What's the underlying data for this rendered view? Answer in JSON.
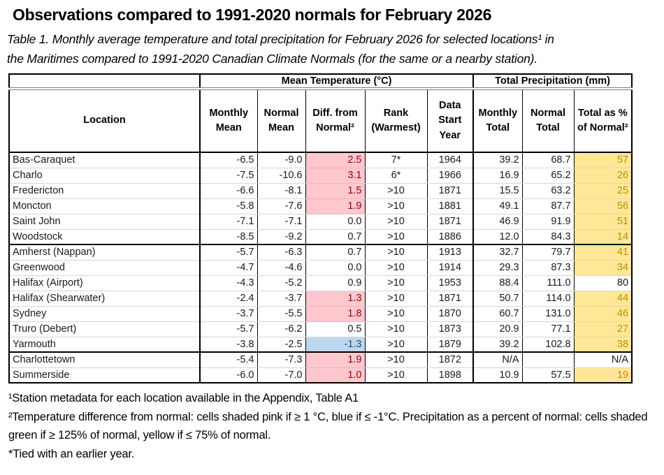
{
  "page": {
    "title": "Observations compared to 1991-2020 normals for February 2026",
    "caption_lines": [
      "Table 1. Monthly average temperature and total precipitation for February 2026 for selected locations¹ in",
      "the Maritimes compared to 1991-2020 Canadian Climate Normals (for the same or a nearby station)."
    ]
  },
  "table": {
    "group_headers": {
      "temperature": "Mean Temperature (°C)",
      "precipitation": "Total Precipitation (mm)"
    },
    "columns": [
      "Location",
      "Monthly Mean",
      "Normal Mean",
      "Diff. from Normal²",
      "Rank (Warmest)",
      "Data Start Year",
      "Monthly Total",
      "Normal Total",
      "Total as % of Normal²"
    ],
    "rows": [
      {
        "location": "Bas-Caraquet",
        "monthly_mean": "-6.5",
        "normal_mean": "-9.0",
        "diff": "2.5",
        "diff_shade": "pink",
        "rank": "7*",
        "start_year": "1964",
        "monthly_total": "39.2",
        "normal_total": "68.7",
        "pct": "57",
        "pct_shade": "yellow",
        "group_end": false
      },
      {
        "location": "Charlo",
        "monthly_mean": "-7.5",
        "normal_mean": "-10.6",
        "diff": "3.1",
        "diff_shade": "pink",
        "rank": "6*",
        "start_year": "1966",
        "monthly_total": "16.9",
        "normal_total": "65.2",
        "pct": "26",
        "pct_shade": "yellow",
        "group_end": false
      },
      {
        "location": "Fredericton",
        "monthly_mean": "-6.6",
        "normal_mean": "-8.1",
        "diff": "1.5",
        "diff_shade": "pink",
        "rank": ">10",
        "start_year": "1871",
        "monthly_total": "15.5",
        "normal_total": "63.2",
        "pct": "25",
        "pct_shade": "yellow",
        "group_end": false
      },
      {
        "location": "Moncton",
        "monthly_mean": "-5.8",
        "normal_mean": "-7.6",
        "diff": "1.9",
        "diff_shade": "pink",
        "rank": ">10",
        "start_year": "1881",
        "monthly_total": "49.1",
        "normal_total": "87.7",
        "pct": "56",
        "pct_shade": "yellow",
        "group_end": false
      },
      {
        "location": "Saint John",
        "monthly_mean": "-7.1",
        "normal_mean": "-7.1",
        "diff": "0.0",
        "diff_shade": "none",
        "rank": ">10",
        "start_year": "1871",
        "monthly_total": "46.9",
        "normal_total": "91.9",
        "pct": "51",
        "pct_shade": "yellow",
        "group_end": false
      },
      {
        "location": "Woodstock",
        "monthly_mean": "-8.5",
        "normal_mean": "-9.2",
        "diff": "0.7",
        "diff_shade": "none",
        "rank": ">10",
        "start_year": "1886",
        "monthly_total": "12.0",
        "normal_total": "84.3",
        "pct": "14",
        "pct_shade": "yellow",
        "group_end": true
      },
      {
        "location": "Amherst (Nappan)",
        "monthly_mean": "-5.7",
        "normal_mean": "-6.3",
        "diff": "0.7",
        "diff_shade": "none",
        "rank": ">10",
        "start_year": "1913",
        "monthly_total": "32.7",
        "normal_total": "79.7",
        "pct": "41",
        "pct_shade": "yellow",
        "group_end": false
      },
      {
        "location": "Greenwood",
        "monthly_mean": "-4.7",
        "normal_mean": "-4.6",
        "diff": "0.0",
        "diff_shade": "none",
        "rank": ">10",
        "start_year": "1914",
        "monthly_total": "29.3",
        "normal_total": "87.3",
        "pct": "34",
        "pct_shade": "yellow",
        "group_end": false
      },
      {
        "location": "Halifax (Airport)",
        "monthly_mean": "-4.3",
        "normal_mean": "-5.2",
        "diff": "0.9",
        "diff_shade": "none",
        "rank": ">10",
        "start_year": "1953",
        "monthly_total": "88.4",
        "normal_total": "111.0",
        "pct": "80",
        "pct_shade": "none",
        "group_end": false
      },
      {
        "location": "Halifax (Shearwater)",
        "monthly_mean": "-2.4",
        "normal_mean": "-3.7",
        "diff": "1.3",
        "diff_shade": "pink",
        "rank": ">10",
        "start_year": "1871",
        "monthly_total": "50.7",
        "normal_total": "114.0",
        "pct": "44",
        "pct_shade": "yellow",
        "group_end": false
      },
      {
        "location": "Sydney",
        "monthly_mean": "-3.7",
        "normal_mean": "-5.5",
        "diff": "1.8",
        "diff_shade": "pink",
        "rank": ">10",
        "start_year": "1870",
        "monthly_total": "60.7",
        "normal_total": "131.0",
        "pct": "46",
        "pct_shade": "yellow",
        "group_end": false
      },
      {
        "location": "Truro (Debert)",
        "monthly_mean": "-5.7",
        "normal_mean": "-6.2",
        "diff": "0.5",
        "diff_shade": "none",
        "rank": ">10",
        "start_year": "1873",
        "monthly_total": "20.9",
        "normal_total": "77.1",
        "pct": "27",
        "pct_shade": "yellow",
        "group_end": false
      },
      {
        "location": "Yarmouth",
        "monthly_mean": "-3.8",
        "normal_mean": "-2.5",
        "diff": "-1.3",
        "diff_shade": "blue",
        "rank": ">10",
        "start_year": "1879",
        "monthly_total": "39.2",
        "normal_total": "102.8",
        "pct": "38",
        "pct_shade": "yellow",
        "group_end": true
      },
      {
        "location": "Charlottetown",
        "monthly_mean": "-5.4",
        "normal_mean": "-7.3",
        "diff": "1.9",
        "diff_shade": "pink",
        "rank": ">10",
        "start_year": "1872",
        "monthly_total": "N/A",
        "normal_total": "",
        "pct": "N/A",
        "pct_shade": "none",
        "group_end": false
      },
      {
        "location": "Summerside",
        "monthly_mean": "-6.0",
        "normal_mean": "-7.0",
        "diff": "1.0",
        "diff_shade": "pink",
        "rank": ">10",
        "start_year": "1898",
        "monthly_total": "10.9",
        "normal_total": "57.5",
        "pct": "19",
        "pct_shade": "yellow",
        "group_end": false
      }
    ]
  },
  "footnotes": [
    "¹Station metadata for each location available in the Appendix, Table A1",
    "²Temperature difference from normal: cells shaded pink if ≥ 1 °C, blue if ≤ -1°C. Precipitation as a percent of normal: cells shaded green if ≥ 125% of normal, yellow if ≤ 75% of normal.",
    "*Tied with an earlier year."
  ],
  "colors": {
    "pink_fill": "#FFC7CE",
    "pink_text": "#9C0006",
    "blue_fill": "#BDD7EE",
    "blue_text": "#1F4E79",
    "yellow_fill": "#FFE797",
    "yellow_text": "#BF8F00"
  }
}
